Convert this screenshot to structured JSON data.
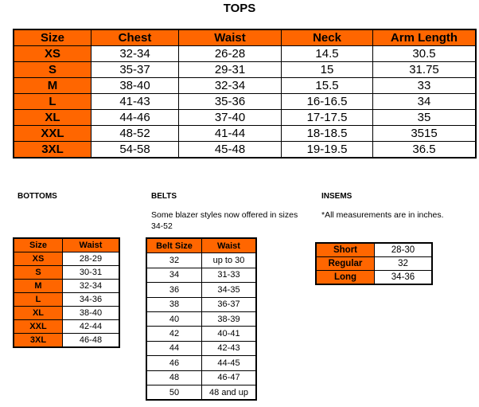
{
  "tops": {
    "title": "TOPS",
    "headers": [
      "Size",
      "Chest",
      "Waist",
      "Neck",
      "Arm Length"
    ],
    "rows": [
      [
        "XS",
        "32-34",
        "26-28",
        "14.5",
        "30.5"
      ],
      [
        "S",
        "35-37",
        "29-31",
        "15",
        "31.75"
      ],
      [
        "M",
        "38-40",
        "32-34",
        "15.5",
        "33"
      ],
      [
        "L",
        "41-43",
        "35-36",
        "16-16.5",
        "34"
      ],
      [
        "XL",
        "44-46",
        "37-40",
        "17-17.5",
        "35"
      ],
      [
        "XXL",
        "48-52",
        "41-44",
        "18-18.5",
        "3515"
      ],
      [
        "3XL",
        "54-58",
        "45-48",
        "19-19.5",
        "36.5"
      ]
    ]
  },
  "bottoms": {
    "title": "BOTTOMS",
    "headers": [
      "Size",
      "Waist"
    ],
    "rows": [
      [
        "XS",
        "28-29"
      ],
      [
        "S",
        "30-31"
      ],
      [
        "M",
        "32-34"
      ],
      [
        "L",
        "34-36"
      ],
      [
        "XL",
        "38-40"
      ],
      [
        "XXL",
        "42-44"
      ],
      [
        "3XL",
        "46-48"
      ]
    ]
  },
  "belts": {
    "title": "BELTS",
    "note": "Some blazer styles now offered in sizes 34-52",
    "headers": [
      "Belt Size",
      "Waist"
    ],
    "rows": [
      [
        "32",
        "up to 30"
      ],
      [
        "34",
        "31-33"
      ],
      [
        "36",
        "34-35"
      ],
      [
        "38",
        "36-37"
      ],
      [
        "40",
        "38-39"
      ],
      [
        "42",
        "40-41"
      ],
      [
        "44",
        "42-43"
      ],
      [
        "46",
        "44-45"
      ],
      [
        "48",
        "46-47"
      ],
      [
        "50",
        "48 and up"
      ]
    ]
  },
  "insems": {
    "title": "INSEMS",
    "note": "*All measurements are in inches.",
    "rows": [
      [
        "Short",
        "28-30"
      ],
      [
        "Regular",
        "32"
      ],
      [
        "Long",
        "34-36"
      ]
    ]
  },
  "colors": {
    "header_fill": "#FF6600",
    "border": "#000000"
  }
}
